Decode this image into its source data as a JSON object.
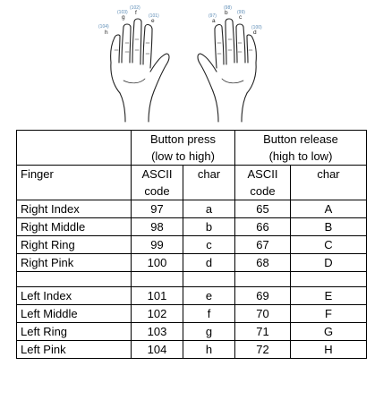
{
  "hands": {
    "left": {
      "labels": [
        {
          "code": "(104)",
          "letter": "h"
        },
        {
          "code": "(103)",
          "letter": "g"
        },
        {
          "code": "(102)",
          "letter": "f"
        },
        {
          "code": "(101)",
          "letter": "e"
        }
      ]
    },
    "right": {
      "labels": [
        {
          "code": "(97)",
          "letter": "a"
        },
        {
          "code": "(98)",
          "letter": "b"
        },
        {
          "code": "(99)",
          "letter": "c"
        },
        {
          "code": "(100)",
          "letter": "d"
        }
      ]
    }
  },
  "table": {
    "header": {
      "press": [
        "Button  press",
        "(low to high)"
      ],
      "release": [
        "Button release",
        "(high to low)"
      ]
    },
    "subheader": {
      "finger": "Finger",
      "ascii": [
        "ASCII",
        "code"
      ],
      "char": "char"
    },
    "right_rows": [
      {
        "finger": "Right Index",
        "press_code": "97",
        "press_char": "a",
        "release_code": "65",
        "release_char": "A"
      },
      {
        "finger": "Right Middle",
        "press_code": "98",
        "press_char": "b",
        "release_code": "66",
        "release_char": "B"
      },
      {
        "finger": "Right Ring",
        "press_code": "99",
        "press_char": "c",
        "release_code": "67",
        "release_char": "C"
      },
      {
        "finger": "Right Pink",
        "press_code": "100",
        "press_char": "d",
        "release_code": "68",
        "release_char": "D"
      }
    ],
    "left_rows": [
      {
        "finger": "Left Index",
        "press_code": "101",
        "press_char": "e",
        "release_code": "69",
        "release_char": "E"
      },
      {
        "finger": "Left Middle",
        "press_code": "102",
        "press_char": "f",
        "release_code": "70",
        "release_char": "F"
      },
      {
        "finger": "Left Ring",
        "press_code": "103",
        "press_char": "g",
        "release_code": "71",
        "release_char": "G"
      },
      {
        "finger": "Left Pink",
        "press_code": "104",
        "press_char": "h",
        "release_code": "72",
        "release_char": "H"
      }
    ]
  }
}
